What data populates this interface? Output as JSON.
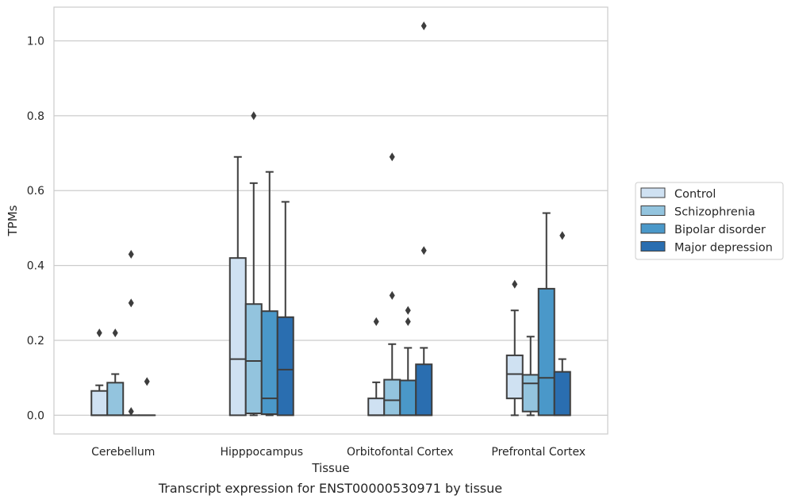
{
  "caption": "Transcript expression for ENST00000530971 by tissue",
  "chart_data": {
    "type": "box",
    "title": "",
    "xlabel": "Tissue",
    "ylabel": "TPMs",
    "ylim": [
      -0.05,
      1.09
    ],
    "yticks": [
      "0.0",
      "0.2",
      "0.4",
      "0.6",
      "0.8",
      "1.0"
    ],
    "grid": true,
    "legend_position": "right",
    "categories": [
      "Cerebellum",
      "Hipppocampus",
      "Orbitofontal Cortex",
      "Prefrontal Cortex"
    ],
    "series": [
      {
        "name": "Control",
        "color": "#cfe1f2",
        "boxes": [
          {
            "q1": 0.0,
            "median": 0.0,
            "q3": 0.065,
            "whislo": 0.0,
            "whishi": 0.08,
            "fliers": [
              0.22
            ]
          },
          {
            "q1": 0.0,
            "median": 0.15,
            "q3": 0.42,
            "whislo": 0.0,
            "whishi": 0.69,
            "fliers": []
          },
          {
            "q1": 0.0,
            "median": 0.0,
            "q3": 0.045,
            "whislo": 0.0,
            "whishi": 0.088,
            "fliers": [
              0.25
            ]
          },
          {
            "q1": 0.045,
            "median": 0.11,
            "q3": 0.16,
            "whislo": 0.0,
            "whishi": 0.28,
            "fliers": [
              0.35
            ]
          }
        ]
      },
      {
        "name": "Schizophrenia",
        "color": "#93c4de",
        "boxes": [
          {
            "q1": 0.0,
            "median": 0.0,
            "q3": 0.087,
            "whislo": 0.0,
            "whishi": 0.11,
            "fliers": [
              0.22
            ]
          },
          {
            "q1": 0.005,
            "median": 0.145,
            "q3": 0.297,
            "whislo": 0.0,
            "whishi": 0.62,
            "fliers": [
              0.8
            ]
          },
          {
            "q1": 0.0,
            "median": 0.04,
            "q3": 0.095,
            "whislo": 0.0,
            "whishi": 0.19,
            "fliers": [
              0.32,
              0.69
            ]
          },
          {
            "q1": 0.01,
            "median": 0.085,
            "q3": 0.108,
            "whislo": 0.0,
            "whishi": 0.21,
            "fliers": []
          }
        ]
      },
      {
        "name": "Bipolar disorder",
        "color": "#4a98c9",
        "boxes": [
          {
            "q1": 0.0,
            "median": 0.0,
            "q3": 0.0,
            "whislo": 0.0,
            "whishi": 0.0,
            "fliers": [
              0.01,
              0.3,
              0.43
            ]
          },
          {
            "q1": 0.003,
            "median": 0.045,
            "q3": 0.278,
            "whislo": 0.0,
            "whishi": 0.65,
            "fliers": []
          },
          {
            "q1": 0.0,
            "median": 0.0,
            "q3": 0.093,
            "whislo": 0.0,
            "whishi": 0.18,
            "fliers": [
              0.25,
              0.28
            ]
          },
          {
            "q1": 0.0,
            "median": 0.1,
            "q3": 0.338,
            "whislo": 0.0,
            "whishi": 0.54,
            "fliers": []
          }
        ]
      },
      {
        "name": "Major depression",
        "color": "#2a6eb0",
        "boxes": [
          {
            "q1": 0.0,
            "median": 0.0,
            "q3": 0.0,
            "whislo": 0.0,
            "whishi": 0.0,
            "fliers": [
              0.09
            ]
          },
          {
            "q1": 0.0,
            "median": 0.122,
            "q3": 0.262,
            "whislo": 0.0,
            "whishi": 0.57,
            "fliers": []
          },
          {
            "q1": 0.0,
            "median": 0.0,
            "q3": 0.136,
            "whislo": 0.0,
            "whishi": 0.18,
            "fliers": [
              0.44,
              1.04
            ]
          },
          {
            "q1": 0.0,
            "median": 0.0,
            "q3": 0.116,
            "whislo": 0.0,
            "whishi": 0.15,
            "fliers": [
              0.48
            ]
          }
        ]
      }
    ]
  }
}
